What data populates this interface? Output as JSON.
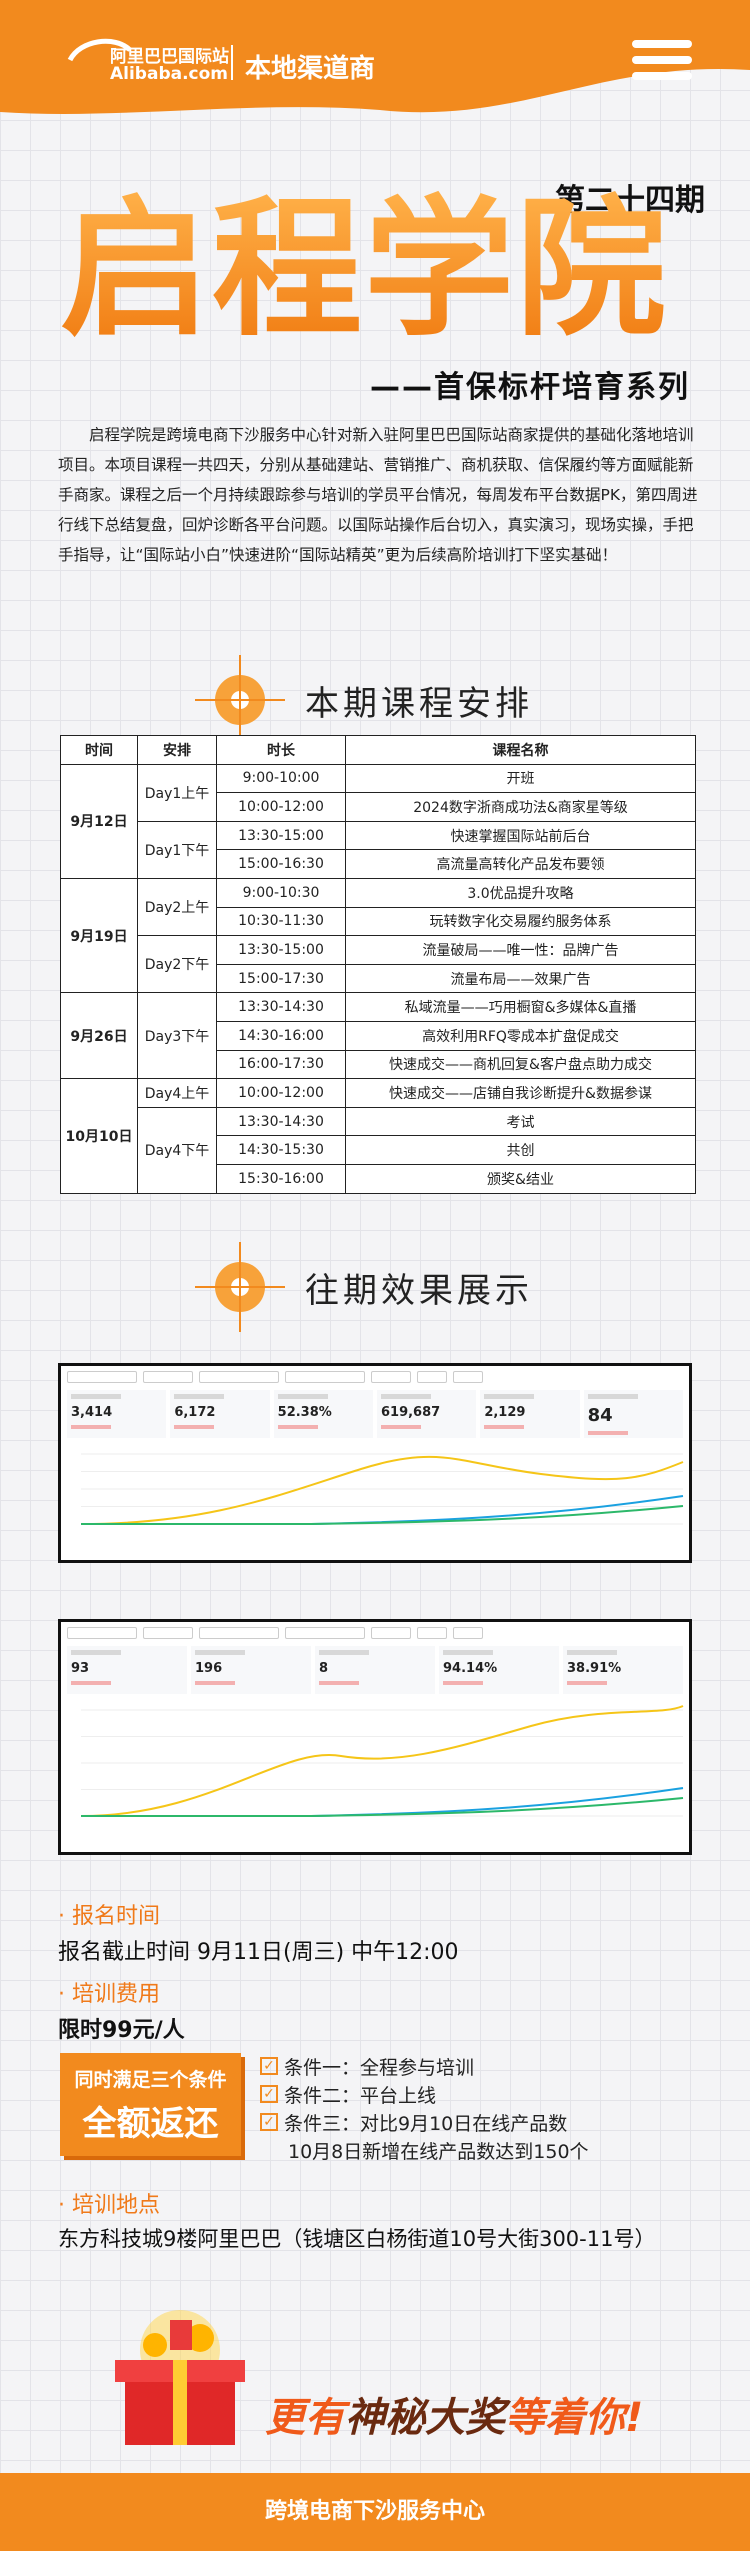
{
  "header": {
    "logo_cn": "阿里巴巴国际站",
    "logo_en": "Alibaba.com",
    "channel": "本地渠道商"
  },
  "hero": {
    "issue": "第二十四期",
    "title": "启程学院",
    "subtitle": "——首保标杆培育系列"
  },
  "intro": "启程学院是跨境电商下沙服务中心针对新入驻阿里巴巴国际站商家提供的基础化落地培训项目。本项目课程一共四天，分别从基础建站、营销推广、商机获取、信保履约等方面赋能新手商家。课程之后一个月持续跟踪参与培训的学员平台情况，每周发布平台数据PK，第四周进行线下总结复盘，回炉诊断各平台问题。以国际站操作后台切入，真实演习，现场实操，手把手指导，让“国际站小白”快速进阶“国际站精英”更为后续高阶培训打下坚实基础！",
  "schedule": {
    "heading": "本期课程安排",
    "columns": [
      "时间",
      "安排",
      "时长",
      "课程名称"
    ],
    "groups": [
      {
        "date": "9月12日",
        "sessions": [
          {
            "label": "Day1上午",
            "rows": [
              {
                "time": "9:00-10:00",
                "course": "开班"
              },
              {
                "time": "10:00-12:00",
                "course": "2024数字浙商成功法&商家星等级"
              }
            ]
          },
          {
            "label": "Day1下午",
            "rows": [
              {
                "time": "13:30-15:00",
                "course": "快速掌握国际站前后台"
              },
              {
                "time": "15:00-16:30",
                "course": "高流量高转化产品发布要领"
              }
            ]
          }
        ]
      },
      {
        "date": "9月19日",
        "sessions": [
          {
            "label": "Day2上午",
            "rows": [
              {
                "time": "9:00-10:30",
                "course": "3.0优品提升攻略"
              },
              {
                "time": "10:30-11:30",
                "course": "玩转数字化交易履约服务体系"
              }
            ]
          },
          {
            "label": "Day2下午",
            "rows": [
              {
                "time": "13:30-15:00",
                "course": "流量破局——唯一性：品牌广告"
              },
              {
                "time": "15:00-17:30",
                "course": "流量布局——效果广告"
              }
            ]
          }
        ]
      },
      {
        "date": "9月26日",
        "sessions": [
          {
            "label": "Day3下午",
            "rows": [
              {
                "time": "13:30-14:30",
                "course": "私域流量——巧用橱窗&多媒体&直播"
              },
              {
                "time": "14:30-16:00",
                "course": "高效利用RFQ零成本扩盘促成交"
              },
              {
                "time": "16:00-17:30",
                "course": "快速成交——商机回复&客户盘点助力成交"
              }
            ]
          }
        ]
      },
      {
        "date": "10月10日",
        "sessions": [
          {
            "label": "Day4上午",
            "rows": [
              {
                "time": "10:00-12:00",
                "course": "快速成交——店铺自我诊断提升&数据参谋"
              }
            ]
          },
          {
            "label": "Day4下午",
            "rows": [
              {
                "time": "13:30-14:30",
                "course": "考试"
              },
              {
                "time": "14:30-15:30",
                "course": "共创"
              },
              {
                "time": "15:30-16:00",
                "course": "颁奖&结业"
              }
            ]
          }
        ]
      }
    ]
  },
  "results": {
    "heading": "往期效果展示",
    "dashboards": [
      {
        "metrics": [
          "3,414",
          "6,172",
          "52.38%",
          "619,687",
          "2,129",
          "84"
        ]
      },
      {
        "metrics": [
          "93",
          "196",
          "8",
          "94.14%",
          "38.91%"
        ]
      }
    ]
  },
  "signup": {
    "label": "报名时间",
    "text": "报名截止时间 9月11日(周三) 中午12:00"
  },
  "fee": {
    "label": "培训费用",
    "text": "限时99元/人",
    "badge": [
      "同时满足三个条件",
      "全额返还"
    ],
    "conditions": [
      [
        "条件一：全程参与培训"
      ],
      [
        "条件二：平台上线"
      ],
      [
        "条件三：对比9月10日在线产品数",
        "10月8日新增在线产品数达到150个"
      ]
    ]
  },
  "venue": {
    "label": "培训地点",
    "text": "东方科技城9楼阿里巴巴（钱塘区白杨街道10号大街300-11号）"
  },
  "promo": [
    "更有",
    "神秘大奖",
    "等着你!"
  ],
  "footer": "跨境电商下沙服务中心"
}
